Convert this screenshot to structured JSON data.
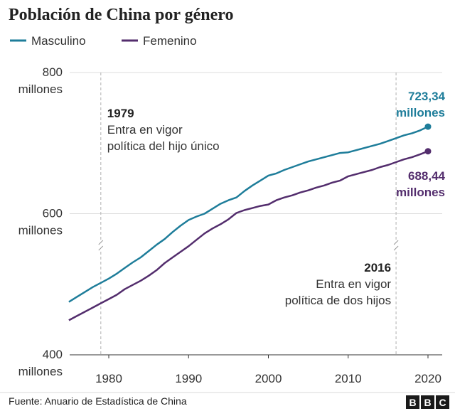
{
  "chart_data": {
    "type": "line",
    "title": "Población de China por género",
    "xlabel": "",
    "ylabel": "",
    "xlim": [
      1975,
      2020
    ],
    "ylim": [
      400,
      800
    ],
    "x_ticks": [
      1980,
      1990,
      2000,
      2010,
      2020
    ],
    "y_ticks": [
      {
        "value": 800,
        "label": "800",
        "unit": "millones"
      },
      {
        "value": 600,
        "label": "600",
        "unit": "millones"
      },
      {
        "value": 400,
        "label": "400",
        "unit": "millones"
      }
    ],
    "grid": "horizontal",
    "axis_break": true,
    "legend": {
      "placement": "top-left"
    },
    "x": [
      1975,
      1976,
      1977,
      1978,
      1979,
      1980,
      1981,
      1982,
      1983,
      1984,
      1985,
      1986,
      1987,
      1988,
      1989,
      1990,
      1991,
      1992,
      1993,
      1994,
      1995,
      1996,
      1997,
      1998,
      1999,
      2000,
      2001,
      2002,
      2003,
      2004,
      2005,
      2006,
      2007,
      2008,
      2009,
      2010,
      2011,
      2012,
      2013,
      2014,
      2015,
      2016,
      2017,
      2018,
      2019,
      2020
    ],
    "series": [
      {
        "name": "Masculino",
        "color": "#1e7d9a",
        "values": [
          475,
          482,
          489,
          496,
          502,
          508,
          515,
          523,
          531,
          538,
          547,
          556,
          564,
          574,
          583,
          591,
          596,
          600,
          607,
          614,
          619,
          623,
          632,
          640,
          647,
          654,
          657,
          662,
          666,
          670,
          674,
          677,
          680,
          683,
          686,
          687,
          690,
          693,
          696,
          699,
          703,
          707,
          711,
          714,
          718,
          723.34
        ],
        "end_label": {
          "value": "723,34",
          "unit": "millones"
        }
      },
      {
        "name": "Femenino",
        "color": "#532d6d",
        "values": [
          449,
          455,
          461,
          467,
          473,
          479,
          485,
          493,
          499,
          505,
          512,
          520,
          530,
          538,
          546,
          554,
          563,
          572,
          579,
          585,
          592,
          601,
          605,
          608,
          611,
          613,
          619,
          623,
          626,
          630,
          633,
          637,
          640,
          644,
          647,
          653,
          656,
          659,
          662,
          666,
          669,
          673,
          677,
          680,
          684,
          688.44
        ],
        "end_label": {
          "value": "688,44",
          "unit": "millones"
        }
      }
    ],
    "annotations": [
      {
        "year": 1979,
        "label_year": "1979",
        "line1": "Entra en vigor",
        "line2": "política del hijo único",
        "align": "left"
      },
      {
        "year": 2016,
        "label_year": "2016",
        "line1": "Entra en vigor",
        "line2": "política de dos hijos",
        "align": "right"
      }
    ]
  },
  "footer": {
    "source": "Fuente: Anuario de Estadística de China",
    "logo": [
      "B",
      "B",
      "C"
    ]
  }
}
